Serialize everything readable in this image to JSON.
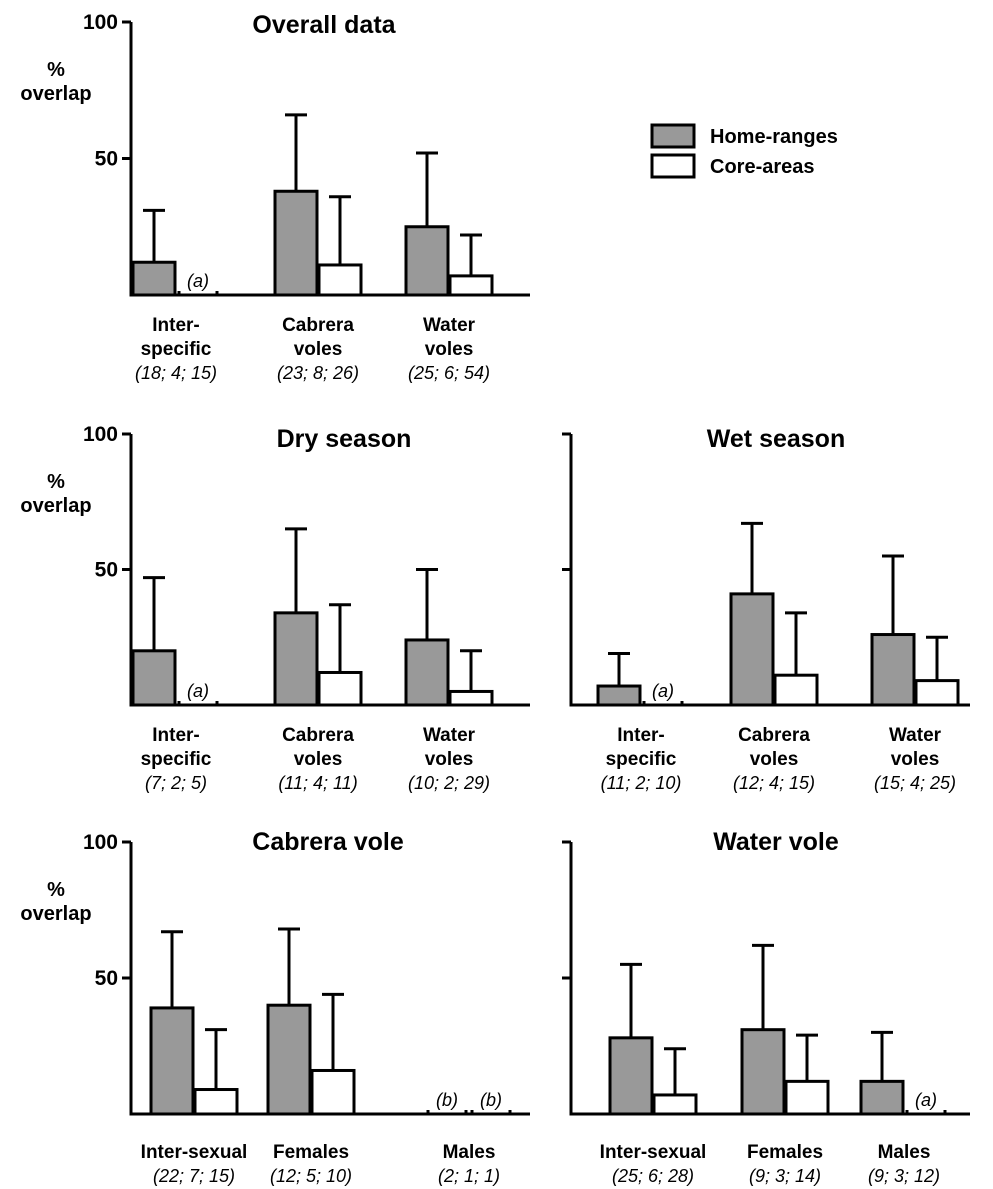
{
  "legend": {
    "items": [
      {
        "label": "Home-ranges",
        "color": "#999999"
      },
      {
        "label": "Core-areas",
        "color": "#ffffff"
      }
    ]
  },
  "chart_data": [
    {
      "type": "bar",
      "title": "Overall data",
      "ylabel": [
        "%",
        "overlap"
      ],
      "ylim": [
        0,
        100
      ],
      "yticks": [
        "50",
        "100"
      ],
      "categories": [
        {
          "label": [
            "Inter-",
            "specific"
          ],
          "n": "(18; 4; 15)"
        },
        {
          "label": [
            "Cabrera",
            "voles"
          ],
          "n": "(23; 8; 26)"
        },
        {
          "label": [
            "Water",
            "voles"
          ],
          "n": "(25; 6; 54)"
        }
      ],
      "series": [
        {
          "name": "Home-ranges",
          "values": [
            12,
            38,
            25
          ],
          "errors": [
            31,
            66,
            52
          ],
          "annotations": [
            null,
            null,
            null
          ]
        },
        {
          "name": "Core-areas",
          "values": [
            0,
            11,
            7
          ],
          "errors": [
            null,
            36,
            22
          ],
          "annotations": [
            "(a)",
            null,
            null
          ]
        }
      ]
    },
    {
      "type": "bar",
      "title": "Dry season",
      "ylabel": [
        "%",
        "overlap"
      ],
      "ylim": [
        0,
        100
      ],
      "yticks": [
        "50",
        "100"
      ],
      "categories": [
        {
          "label": [
            "Inter-",
            "specific"
          ],
          "n": "(7; 2; 5)"
        },
        {
          "label": [
            "Cabrera",
            "voles"
          ],
          "n": "(11; 4; 11)"
        },
        {
          "label": [
            "Water",
            "voles"
          ],
          "n": "(10; 2; 29)"
        }
      ],
      "series": [
        {
          "name": "Home-ranges",
          "values": [
            20,
            34,
            24
          ],
          "errors": [
            47,
            65,
            50
          ],
          "annotations": [
            null,
            null,
            null
          ]
        },
        {
          "name": "Core-areas",
          "values": [
            0,
            12,
            5
          ],
          "errors": [
            null,
            37,
            20
          ],
          "annotations": [
            "(a)",
            null,
            null
          ]
        }
      ]
    },
    {
      "type": "bar",
      "title": "Wet season",
      "ylabel": null,
      "ylim": [
        0,
        100
      ],
      "yticks": [],
      "categories": [
        {
          "label": [
            "Inter-",
            "specific"
          ],
          "n": "(11; 2; 10)"
        },
        {
          "label": [
            "Cabrera",
            "voles"
          ],
          "n": "(12; 4; 15)"
        },
        {
          "label": [
            "Water",
            "voles"
          ],
          "n": "(15; 4; 25)"
        }
      ],
      "series": [
        {
          "name": "Home-ranges",
          "values": [
            7,
            41,
            26
          ],
          "errors": [
            19,
            67,
            55
          ],
          "annotations": [
            null,
            null,
            null
          ]
        },
        {
          "name": "Core-areas",
          "values": [
            0,
            11,
            9
          ],
          "errors": [
            null,
            34,
            25
          ],
          "annotations": [
            "(a)",
            null,
            null
          ]
        }
      ]
    },
    {
      "type": "bar",
      "title": "Cabrera vole",
      "ylabel": [
        "%",
        "overlap"
      ],
      "ylim": [
        0,
        100
      ],
      "yticks": [
        "50",
        "100"
      ],
      "categories": [
        {
          "label": [
            "Inter-sexual"
          ],
          "n": "(22; 7; 15)"
        },
        {
          "label": [
            "Females"
          ],
          "n": "(12; 5; 10)"
        },
        {
          "label": [
            "Males"
          ],
          "n": "(2; 1; 1)"
        }
      ],
      "series": [
        {
          "name": "Home-ranges",
          "values": [
            39,
            40,
            0
          ],
          "errors": [
            67,
            68,
            null
          ],
          "annotations": [
            null,
            null,
            "(b)"
          ]
        },
        {
          "name": "Core-areas",
          "values": [
            9,
            16,
            0
          ],
          "errors": [
            31,
            44,
            null
          ],
          "annotations": [
            null,
            null,
            "(b)"
          ]
        }
      ]
    },
    {
      "type": "bar",
      "title": "Water vole",
      "ylabel": null,
      "ylim": [
        0,
        100
      ],
      "yticks": [],
      "categories": [
        {
          "label": [
            "Inter-sexual"
          ],
          "n": "(25; 6; 28)"
        },
        {
          "label": [
            "Females"
          ],
          "n": "(9; 3; 14)"
        },
        {
          "label": [
            "Males"
          ],
          "n": "(9; 3; 12)"
        }
      ],
      "series": [
        {
          "name": "Home-ranges",
          "values": [
            28,
            31,
            12
          ],
          "errors": [
            55,
            62,
            30
          ],
          "annotations": [
            null,
            null,
            null
          ]
        },
        {
          "name": "Core-areas",
          "values": [
            7,
            12,
            0
          ],
          "errors": [
            24,
            29,
            null
          ],
          "annotations": [
            null,
            null,
            "(a)"
          ]
        }
      ]
    }
  ]
}
